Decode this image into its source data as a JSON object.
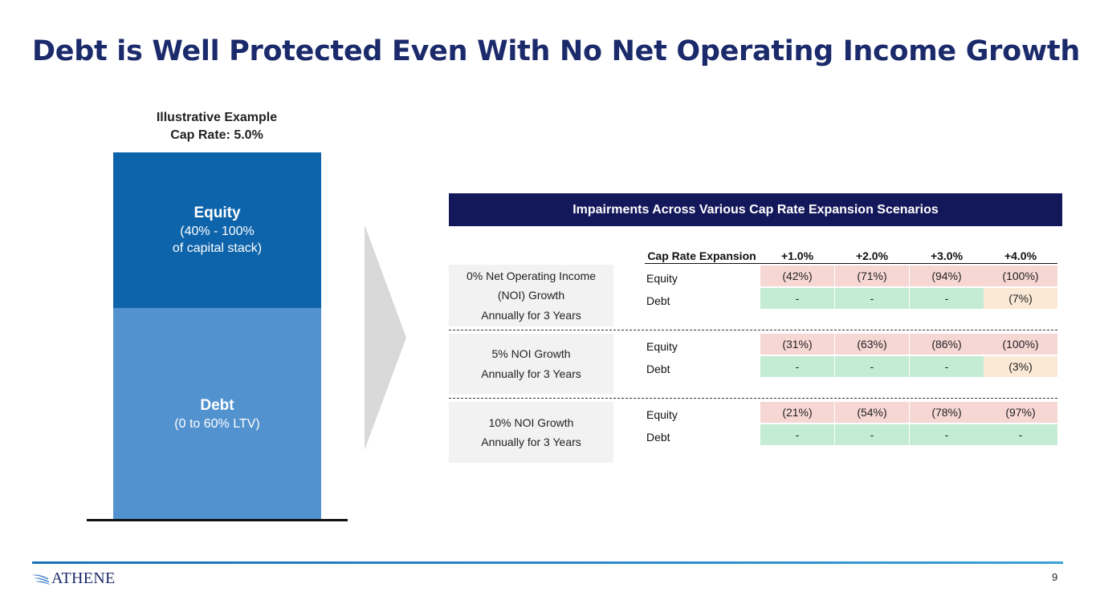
{
  "title": "Debt is Well Protected Even With No Net Operating Income Growth",
  "illustration": {
    "line1": "Illustrative Example",
    "line2": "Cap Rate: 5.0%",
    "equity_title": "Equity",
    "equity_sub1": "(40% - 100%",
    "equity_sub2": "of capital stack)",
    "debt_title": "Debt",
    "debt_sub": "(0 to 60% LTV)"
  },
  "table": {
    "banner": "Impairments Across Various Cap Rate Expansion Scenarios",
    "header": {
      "label": "Cap Rate Expansion",
      "cols": [
        "+1.0%",
        "+2.0%",
        "+3.0%",
        "+4.0%"
      ]
    },
    "scenarios": [
      {
        "lines": [
          "0% Net Operating Income",
          "(NOI) Growth",
          "Annually for 3 Years"
        ],
        "equity_label": "Equity",
        "debt_label": "Debt",
        "equity": [
          "(42%)",
          "(71%)",
          "(94%)",
          "(100%)"
        ],
        "debt": [
          "-",
          "-",
          "-",
          "(7%)"
        ]
      },
      {
        "lines": [
          "5% NOI Growth",
          "Annually for 3 Years"
        ],
        "equity_label": "Equity",
        "debt_label": "Debt",
        "equity": [
          "(31%)",
          "(63%)",
          "(86%)",
          "(100%)"
        ],
        "debt": [
          "-",
          "-",
          "-",
          "(3%)"
        ]
      },
      {
        "lines": [
          "10% NOI Growth",
          "Annually for 3 Years"
        ],
        "equity_label": "Equity",
        "debt_label": "Debt",
        "equity": [
          "(21%)",
          "(54%)",
          "(78%)",
          "(97%)"
        ],
        "debt": [
          "-",
          "-",
          "-",
          "-"
        ]
      }
    ]
  },
  "footer": {
    "logo_text": "ATHENE",
    "page_number": "9"
  },
  "colors": {
    "title": "#1b2a6b",
    "banner": "#13185a",
    "equity_block": "#0e64ab",
    "debt_block": "#5292cf",
    "impairment_red": "#f6d7d4",
    "impairment_green": "#c4ecd4",
    "impairment_tan": "#fbe9d6"
  }
}
